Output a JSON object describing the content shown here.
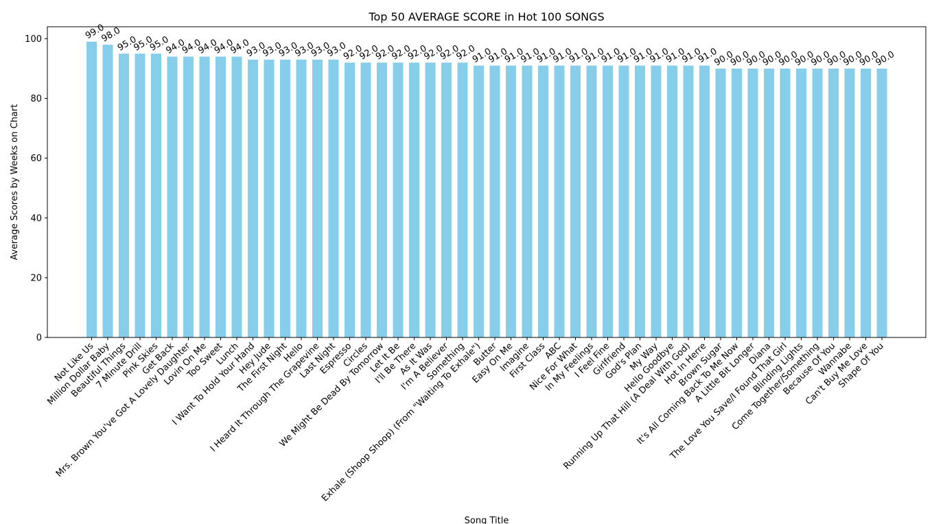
{
  "chart_data": {
    "type": "bar",
    "title": "Top 50 AVERAGE SCORE in Hot 100 SONGS",
    "xlabel": "Song Title",
    "ylabel": "Average Scores by Weeks on Chart",
    "ylim": [
      0,
      104
    ],
    "yticks": [
      "0",
      "20",
      "40",
      "60",
      "80",
      "100"
    ],
    "grid": false,
    "bar_color": "#87ceeb",
    "categories": [
      "Not Like Us",
      "Million Dollar Baby",
      "Beautiful Things",
      "7 Minute Drill",
      "Pink Skies",
      "Get Back",
      "Mrs. Brown You've Got A Lovely Daughter",
      "Lovin On Me",
      "Too Sweet",
      "Lunch",
      "I Want To Hold Your Hand",
      "Hey Jude",
      "The First Night",
      "Hello",
      "I Heard It Through The Grapevine",
      "Last Night",
      "Espresso",
      "Circles",
      "We Might Be Dead By Tomorrow",
      "Let It Be",
      "I'll Be There",
      "As It Was",
      "I'm A Believer",
      "Something",
      "Exhale (Shoop Shoop) (From \"Waiting To Exhale\")",
      "Butter",
      "Easy On Me",
      "Imagine",
      "First Class",
      "ABC",
      "Nice For What",
      "In My Feelings",
      "I Feel Fine",
      "Girlfriend",
      "God's Plan",
      "My Way",
      "Hello Goodbye",
      "Running Up That Hill (A Deal With God)",
      "Hot In Herre",
      "Brown Sugar",
      "It's All Coming Back To Me Now",
      "A Little Bit Longer",
      "Diana",
      "The Love You Save/I Found That Girl",
      "Blinding Lights",
      "Come Together/Something",
      "Because Of You",
      "Wannabe",
      "Can't Buy Me Love",
      "Shape Of You"
    ],
    "values": [
      99.0,
      98.0,
      95.0,
      95.0,
      95.0,
      94.0,
      94.0,
      94.0,
      94.0,
      94.0,
      93.0,
      93.0,
      93.0,
      93.0,
      93.0,
      93.0,
      92.0,
      92.0,
      92.0,
      92.0,
      92.0,
      92.0,
      92.0,
      92.0,
      91.0,
      91.0,
      91.0,
      91.0,
      91.0,
      91.0,
      91.0,
      91.0,
      91.0,
      91.0,
      91.0,
      91.0,
      91.0,
      91.0,
      91.0,
      90.0,
      90.0,
      90.0,
      90.0,
      90.0,
      90.0,
      90.0,
      90.0,
      90.0,
      90.0,
      90.0
    ],
    "value_labels": [
      "99.0",
      "98.0",
      "95.0",
      "95.0",
      "95.0",
      "94.0",
      "94.0",
      "94.0",
      "94.0",
      "94.0",
      "93.0",
      "93.0",
      "93.0",
      "93.0",
      "93.0",
      "93.0",
      "92.0",
      "92.0",
      "92.0",
      "92.0",
      "92.0",
      "92.0",
      "92.0",
      "92.0",
      "91.0",
      "91.0",
      "91.0",
      "91.0",
      "91.0",
      "91.0",
      "91.0",
      "91.0",
      "91.0",
      "91.0",
      "91.0",
      "91.0",
      "91.0",
      "91.0",
      "91.0",
      "90.0",
      "90.0",
      "90.0",
      "90.0",
      "90.0",
      "90.0",
      "90.0",
      "90.0",
      "90.0",
      "90.0",
      "90.0"
    ]
  }
}
